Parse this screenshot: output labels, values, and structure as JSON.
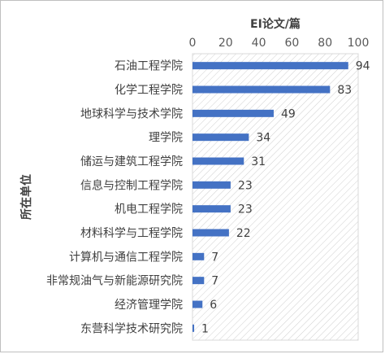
{
  "chart_data": {
    "type": "bar",
    "orientation": "horizontal",
    "xlabel": "EI论文/篇",
    "ylabel": "所在单位",
    "xlim": [
      0,
      100
    ],
    "xticks": [
      0,
      20,
      40,
      60,
      80,
      100
    ],
    "x_axis_position": "top",
    "grid": false,
    "plot_background": "hatched",
    "bar_color": "#4472c4",
    "categories": [
      "石油工程学院",
      "化学工程学院",
      "地球科学与技术学院",
      "理学院",
      "储运与建筑工程学院",
      "信息与控制工程学院",
      "机电工程学院",
      "材料科学与工程学院",
      "计算机与通信工程学院",
      "非常规油气与新能源研究院",
      "经济管理学院",
      "东营科学技术研究院"
    ],
    "values": [
      94,
      83,
      49,
      34,
      31,
      23,
      23,
      22,
      7,
      7,
      6,
      1
    ]
  }
}
